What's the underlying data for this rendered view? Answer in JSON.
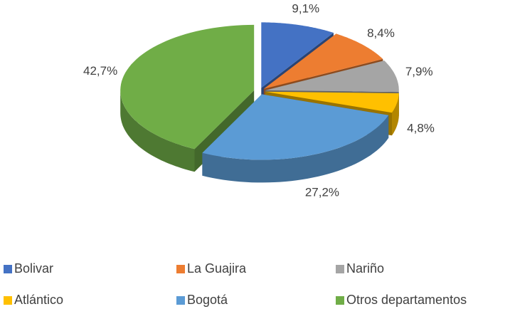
{
  "chart_data": {
    "type": "pie",
    "categories": [
      "Bolivar",
      "La Guajira",
      "Nariño",
      "Atlántico",
      "Bogotá",
      "Otros departamentos"
    ],
    "values": [
      9.1,
      8.4,
      7.9,
      4.8,
      27.2,
      42.7
    ],
    "value_labels": [
      "9,1%",
      "8,4%",
      "7,9%",
      "4,8%",
      "27,2%",
      "42,7%"
    ],
    "colors": [
      "#4472c4",
      "#ed7d31",
      "#a5a5a5",
      "#ffc000",
      "#5b9bd5",
      "#70ad47"
    ],
    "legend": "bottom"
  }
}
